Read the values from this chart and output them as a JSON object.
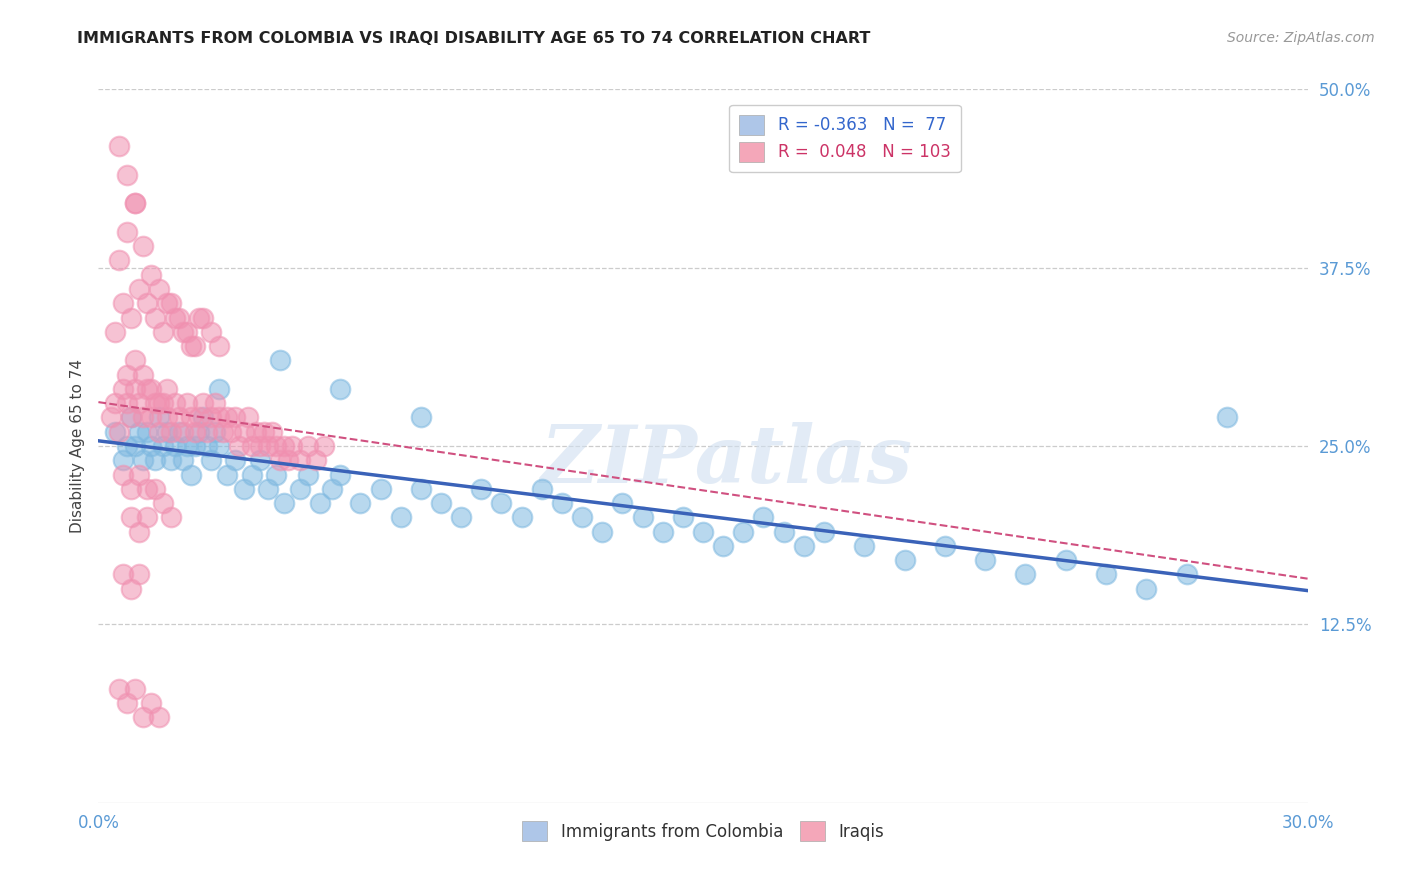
{
  "title": "IMMIGRANTS FROM COLOMBIA VS IRAQI DISABILITY AGE 65 TO 74 CORRELATION CHART",
  "source": "Source: ZipAtlas.com",
  "ylabel": "Disability Age 65 to 74",
  "xlim": [
    0.0,
    0.3
  ],
  "ylim": [
    0.0,
    0.5
  ],
  "legend_label1": "R = -0.363   N =  77",
  "legend_label2": "R =  0.048   N = 103",
  "legend_color1": "#aec6e8",
  "legend_color2": "#f4a7b9",
  "scatter_color1": "#7eb8e0",
  "scatter_color2": "#f090b0",
  "trend_color1": "#3a62b8",
  "trend_color2": "#d05080",
  "watermark": "ZIPatlas",
  "colombia_x": [
    0.004,
    0.006,
    0.007,
    0.008,
    0.009,
    0.01,
    0.011,
    0.012,
    0.013,
    0.014,
    0.015,
    0.016,
    0.017,
    0.018,
    0.019,
    0.02,
    0.021,
    0.022,
    0.023,
    0.024,
    0.025,
    0.026,
    0.027,
    0.028,
    0.029,
    0.03,
    0.032,
    0.034,
    0.036,
    0.038,
    0.04,
    0.042,
    0.044,
    0.046,
    0.05,
    0.052,
    0.055,
    0.058,
    0.06,
    0.065,
    0.07,
    0.075,
    0.08,
    0.085,
    0.09,
    0.095,
    0.1,
    0.105,
    0.11,
    0.115,
    0.12,
    0.125,
    0.13,
    0.135,
    0.14,
    0.145,
    0.15,
    0.155,
    0.16,
    0.165,
    0.17,
    0.175,
    0.18,
    0.19,
    0.2,
    0.21,
    0.22,
    0.23,
    0.24,
    0.25,
    0.26,
    0.27,
    0.28,
    0.03,
    0.045,
    0.06,
    0.08
  ],
  "colombia_y": [
    0.26,
    0.24,
    0.25,
    0.27,
    0.25,
    0.26,
    0.24,
    0.26,
    0.25,
    0.24,
    0.27,
    0.25,
    0.26,
    0.24,
    0.25,
    0.26,
    0.24,
    0.25,
    0.23,
    0.25,
    0.26,
    0.27,
    0.25,
    0.24,
    0.26,
    0.25,
    0.23,
    0.24,
    0.22,
    0.23,
    0.24,
    0.22,
    0.23,
    0.21,
    0.22,
    0.23,
    0.21,
    0.22,
    0.23,
    0.21,
    0.22,
    0.2,
    0.22,
    0.21,
    0.2,
    0.22,
    0.21,
    0.2,
    0.22,
    0.21,
    0.2,
    0.19,
    0.21,
    0.2,
    0.19,
    0.2,
    0.19,
    0.18,
    0.19,
    0.2,
    0.19,
    0.18,
    0.19,
    0.18,
    0.17,
    0.18,
    0.17,
    0.16,
    0.17,
    0.16,
    0.15,
    0.16,
    0.27,
    0.29,
    0.31,
    0.29,
    0.27
  ],
  "iraqi_x": [
    0.003,
    0.004,
    0.005,
    0.006,
    0.007,
    0.008,
    0.009,
    0.01,
    0.011,
    0.012,
    0.013,
    0.014,
    0.015,
    0.016,
    0.017,
    0.018,
    0.019,
    0.02,
    0.021,
    0.022,
    0.023,
    0.024,
    0.025,
    0.026,
    0.027,
    0.028,
    0.029,
    0.03,
    0.031,
    0.032,
    0.033,
    0.034,
    0.035,
    0.036,
    0.037,
    0.038,
    0.039,
    0.04,
    0.041,
    0.042,
    0.043,
    0.044,
    0.045,
    0.046,
    0.047,
    0.048,
    0.05,
    0.052,
    0.054,
    0.056,
    0.004,
    0.006,
    0.008,
    0.01,
    0.012,
    0.014,
    0.016,
    0.018,
    0.02,
    0.022,
    0.024,
    0.026,
    0.028,
    0.03,
    0.005,
    0.007,
    0.009,
    0.011,
    0.013,
    0.015,
    0.017,
    0.019,
    0.021,
    0.023,
    0.025,
    0.014,
    0.016,
    0.018,
    0.008,
    0.01,
    0.012,
    0.007,
    0.009,
    0.011,
    0.013,
    0.015,
    0.017,
    0.005,
    0.007,
    0.009,
    0.006,
    0.008,
    0.01,
    0.012,
    0.006,
    0.008,
    0.01,
    0.005,
    0.007,
    0.009,
    0.011,
    0.013,
    0.015
  ],
  "iraqi_y": [
    0.27,
    0.28,
    0.26,
    0.29,
    0.28,
    0.27,
    0.29,
    0.28,
    0.27,
    0.29,
    0.27,
    0.28,
    0.26,
    0.28,
    0.27,
    0.26,
    0.28,
    0.27,
    0.26,
    0.28,
    0.27,
    0.26,
    0.27,
    0.28,
    0.26,
    0.27,
    0.28,
    0.27,
    0.26,
    0.27,
    0.26,
    0.27,
    0.25,
    0.26,
    0.27,
    0.25,
    0.26,
    0.25,
    0.26,
    0.25,
    0.26,
    0.25,
    0.24,
    0.25,
    0.24,
    0.25,
    0.24,
    0.25,
    0.24,
    0.25,
    0.33,
    0.35,
    0.34,
    0.36,
    0.35,
    0.34,
    0.33,
    0.35,
    0.34,
    0.33,
    0.32,
    0.34,
    0.33,
    0.32,
    0.38,
    0.4,
    0.42,
    0.39,
    0.37,
    0.36,
    0.35,
    0.34,
    0.33,
    0.32,
    0.34,
    0.22,
    0.21,
    0.2,
    0.2,
    0.19,
    0.2,
    0.3,
    0.31,
    0.3,
    0.29,
    0.28,
    0.29,
    0.46,
    0.44,
    0.42,
    0.23,
    0.22,
    0.23,
    0.22,
    0.16,
    0.15,
    0.16,
    0.08,
    0.07,
    0.08,
    0.06,
    0.07,
    0.06
  ]
}
